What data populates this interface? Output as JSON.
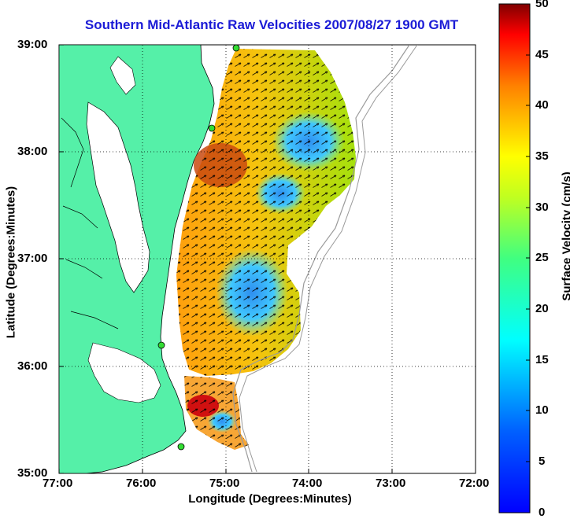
{
  "title": "Southern Mid-Atlantic Raw Velocities 2007/08/27 1900 GMT",
  "x_axis": {
    "label": "Longitude (Degrees:Minutes)",
    "ticks": [
      "77:00",
      "76:00",
      "75:00",
      "74:00",
      "73:00",
      "72:00"
    ]
  },
  "y_axis": {
    "label": "Latitude (Degrees:Minutes)",
    "ticks": [
      "39:00",
      "38:00",
      "37:00",
      "36:00",
      "35:00"
    ]
  },
  "colorbar": {
    "label": "Surface Velocity (cm/s)",
    "ticks": [
      "50",
      "45",
      "40",
      "35",
      "30",
      "25",
      "20",
      "15",
      "10",
      "5",
      "0"
    ],
    "range": [
      0,
      50
    ],
    "colormap": "jet"
  },
  "colors": {
    "land": "#55f0a8",
    "title": "#1b1bd6",
    "bathymetry": "#9a9a9a",
    "station": "#33dd33"
  },
  "chart_data": {
    "type": "heatmap",
    "plot": "surface current velocity field with vectors",
    "xlim": [
      "77:00",
      "72:00"
    ],
    "ylim": [
      "35:00",
      "39:00"
    ],
    "grid": true,
    "value_range": [
      0,
      50
    ],
    "units": "cm/s"
  }
}
